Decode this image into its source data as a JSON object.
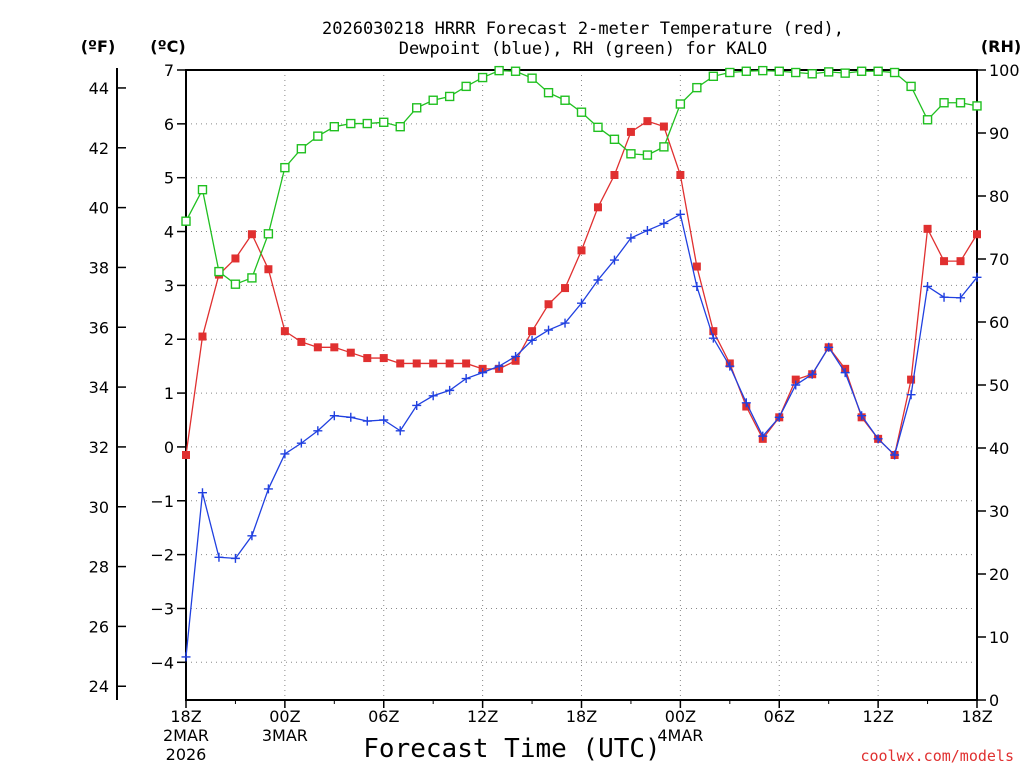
{
  "chart_data": {
    "type": "line",
    "title_line1": "2026030218 HRRR Forecast 2-meter Temperature (red),",
    "title_line2": "Dewpoint (blue), RH (green) for KALO",
    "y_left_f_label": "(ºF)",
    "y_left_c_label": "(ºC)",
    "y_right_label": "(RH)",
    "xlabel": "Forecast Time (UTC)",
    "credit": "coolwx.com/models",
    "x_range_hours": [
      0,
      48
    ],
    "ylim_c": [
      -4.7,
      7
    ],
    "ylim_rh": [
      0,
      100
    ],
    "y_c_ticks": [
      "-4",
      "-3",
      "-2",
      "-1",
      "0",
      "1",
      "2",
      "3",
      "4",
      "5",
      "6",
      "7"
    ],
    "y_f_ticks": [
      "24",
      "26",
      "28",
      "30",
      "32",
      "34",
      "36",
      "38",
      "40",
      "42",
      "44"
    ],
    "y_rh_ticks": [
      "0",
      "10",
      "20",
      "30",
      "40",
      "50",
      "60",
      "70",
      "80",
      "90",
      "100"
    ],
    "x_ticks": [
      {
        "hour": 0,
        "label": "18Z",
        "sub1": "2MAR",
        "sub2": "2026"
      },
      {
        "hour": 6,
        "label": "00Z",
        "sub1": "3MAR",
        "sub2": ""
      },
      {
        "hour": 12,
        "label": "06Z",
        "sub1": "",
        "sub2": ""
      },
      {
        "hour": 18,
        "label": "12Z",
        "sub1": "",
        "sub2": ""
      },
      {
        "hour": 24,
        "label": "18Z",
        "sub1": "",
        "sub2": ""
      },
      {
        "hour": 30,
        "label": "00Z",
        "sub1": "4MAR",
        "sub2": ""
      },
      {
        "hour": 36,
        "label": "06Z",
        "sub1": "",
        "sub2": ""
      },
      {
        "hour": 42,
        "label": "12Z",
        "sub1": "",
        "sub2": ""
      },
      {
        "hour": 48,
        "label": "18Z",
        "sub1": "",
        "sub2": ""
      }
    ],
    "hours": [
      0,
      1,
      2,
      3,
      4,
      5,
      6,
      7,
      8,
      9,
      10,
      11,
      12,
      13,
      14,
      15,
      16,
      17,
      18,
      19,
      20,
      21,
      22,
      23,
      24,
      25,
      26,
      27,
      28,
      29,
      30,
      31,
      32,
      33,
      34,
      35,
      36,
      37,
      38,
      39,
      40,
      41,
      42,
      43,
      44,
      45,
      46,
      47,
      48
    ],
    "series": [
      {
        "name": "Temperature (°C)",
        "color": "#e03030",
        "marker": "filled-square",
        "values": [
          -0.15,
          2.05,
          3.2,
          3.5,
          3.95,
          3.3,
          2.15,
          1.95,
          1.85,
          1.85,
          1.75,
          1.65,
          1.65,
          1.55,
          1.55,
          1.55,
          1.55,
          1.55,
          1.45,
          1.45,
          1.6,
          2.15,
          2.65,
          2.95,
          3.65,
          4.45,
          5.05,
          5.85,
          6.05,
          5.95,
          5.05,
          3.35,
          2.15,
          1.55,
          0.75,
          0.15,
          0.55,
          1.25,
          1.35,
          1.85,
          1.45,
          0.55,
          0.15,
          -0.15,
          1.25,
          4.05,
          3.45,
          3.45,
          3.95
        ]
      },
      {
        "name": "Dewpoint (°C)",
        "color": "#2040e0",
        "marker": "plus",
        "values": [
          -3.9,
          -0.85,
          -2.05,
          -2.07,
          -1.65,
          -0.78,
          -0.13,
          0.07,
          0.3,
          0.58,
          0.55,
          0.48,
          0.5,
          0.3,
          0.77,
          0.95,
          1.05,
          1.27,
          1.38,
          1.5,
          1.68,
          1.98,
          2.17,
          2.3,
          2.67,
          3.1,
          3.47,
          3.88,
          4.02,
          4.15,
          4.32,
          2.98,
          2.02,
          1.5,
          0.82,
          0.2,
          0.55,
          1.15,
          1.35,
          1.85,
          1.38,
          0.58,
          0.15,
          -0.15,
          0.97,
          2.98,
          2.78,
          2.77,
          3.15
        ]
      },
      {
        "name": "RH (%)",
        "color": "#20c020",
        "marker": "open-square",
        "values": [
          76,
          81,
          68,
          66,
          67,
          74,
          84.5,
          87.5,
          89.5,
          91,
          91.5,
          91.5,
          91.7,
          91,
          94,
          95.2,
          95.8,
          97.4,
          98.8,
          99.9,
          99.8,
          98.7,
          96.4,
          95.2,
          93.3,
          90.9,
          89,
          86.7,
          86.5,
          87.8,
          94.6,
          97.2,
          99,
          99.6,
          99.8,
          99.9,
          99.8,
          99.6,
          99.4,
          99.7,
          99.5,
          99.8,
          99.8,
          99.6,
          97.4,
          92.1,
          94.8,
          94.8,
          94.3
        ]
      }
    ]
  }
}
